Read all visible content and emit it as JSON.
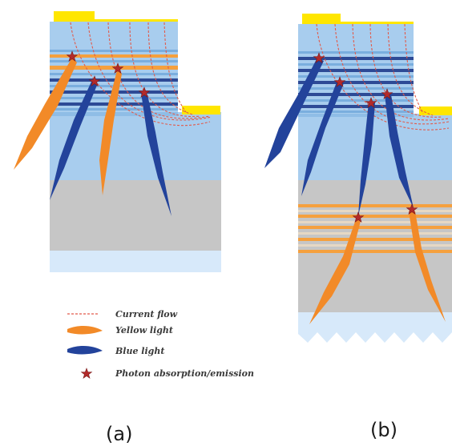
{
  "colors": {
    "upper_layer": "#a8cdee",
    "grey_layer": "#c6c6c6",
    "substrate": "#d7e9fa",
    "contact": "#ffe600",
    "yellow_light": "#f28a28",
    "blue_light": "#23439b",
    "current_flow": "#e25a4a",
    "star": "#b22a2a",
    "well_blue": "#2d4a96",
    "well_orange": "#f5a03e"
  },
  "legend": {
    "current_flow": "Current flow",
    "yellow_light": "Yellow light",
    "blue_light": "Blue light",
    "photon": "Photon absorption/emission"
  },
  "panels": {
    "a": "(a)",
    "b": "(b)"
  }
}
